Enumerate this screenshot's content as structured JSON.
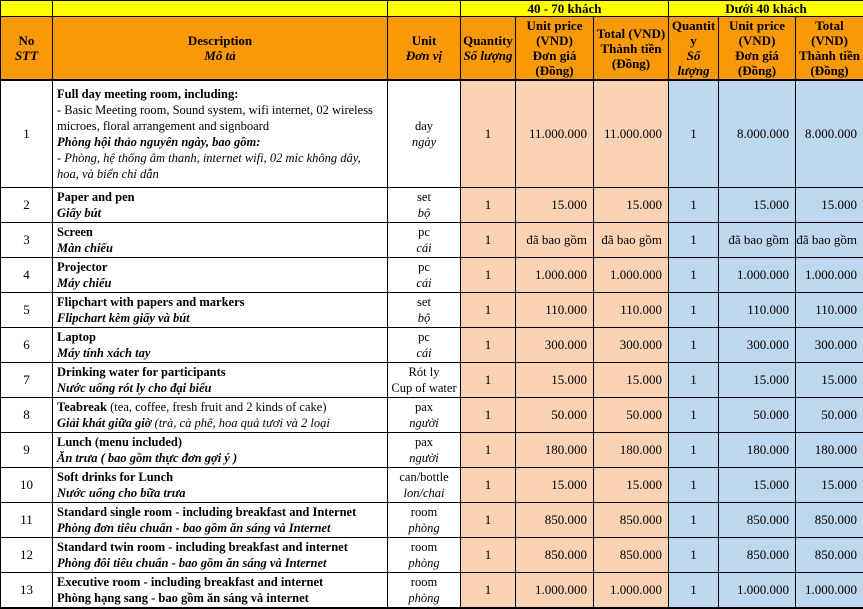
{
  "colors": {
    "header_yellow": "#FFFF00",
    "header_orange": "#FA9907",
    "group1_fill": "#FAD3B4",
    "group2_fill": "#BDD7EE",
    "grid_line": "#000000"
  },
  "header": {
    "no": {
      "en": "No",
      "vi": "STT"
    },
    "description": {
      "en": "Description",
      "vi": "Mô tả"
    },
    "unit": {
      "en": "Unit",
      "vi": "Đơn vị"
    },
    "groups": [
      {
        "title": "40 - 70 khách"
      },
      {
        "title": "Dưới 40 khách"
      }
    ],
    "qty": {
      "en": "Quantity",
      "vi": "Số lượng"
    },
    "unit_price": {
      "en": "Unit price (VND)",
      "vi": "Đơn giá (Đồng)"
    },
    "total": {
      "en": "Total (VND)",
      "vi": "Thành tiền (Đồng)"
    }
  },
  "rows": [
    {
      "no": "1",
      "desc": [
        [
          {
            "t": "Full day meeting room, including:",
            "s": "b"
          }
        ],
        [
          {
            "t": "- Basic Meeting room, Sound system, wifi internet, 02 wireless microes, floral arrangement and signboard",
            "s": "r"
          }
        ],
        [
          {
            "t": "Phòng hội thảo nguyên ngày, bao gồm:",
            "s": "bi"
          }
        ],
        [
          {
            "t": "- Phòng, hệ thống âm thanh, internet wifi, 02 mic không dây, hoa, và biển chỉ dẫn",
            "s": "i"
          }
        ]
      ],
      "unit": [
        {
          "t": "day",
          "s": "r"
        },
        {
          "t": "ngày",
          "s": "i"
        }
      ],
      "g1": {
        "qty": "1",
        "price": "11.000.000",
        "total": "11.000.000"
      },
      "g2": {
        "qty": "1",
        "price": "8.000.000",
        "total": "8.000.000"
      }
    },
    {
      "no": "2",
      "desc": [
        [
          {
            "t": "Paper and pen",
            "s": "b"
          }
        ],
        [
          {
            "t": "Giấy bút",
            "s": "bi"
          }
        ]
      ],
      "unit": [
        {
          "t": "set",
          "s": "r"
        },
        {
          "t": "bộ",
          "s": "i"
        }
      ],
      "g1": {
        "qty": "1",
        "price": "15.000",
        "total": "15.000"
      },
      "g2": {
        "qty": "1",
        "price": "15.000",
        "total": "15.000"
      }
    },
    {
      "no": "3",
      "desc": [
        [
          {
            "t": "Screen",
            "s": "b"
          }
        ],
        [
          {
            "t": "Màn chiếu",
            "s": "bi"
          }
        ]
      ],
      "unit": [
        {
          "t": "pc",
          "s": "r"
        },
        {
          "t": "cái",
          "s": "i"
        }
      ],
      "g1": {
        "qty": "1",
        "price": "đã bao gồm",
        "total": "đã bao gồm"
      },
      "g2": {
        "qty": "1",
        "price": "đã bao gồm",
        "total": "đã bao gồm"
      }
    },
    {
      "no": "4",
      "desc": [
        [
          {
            "t": "Projector",
            "s": "b"
          }
        ],
        [
          {
            "t": "Máy chiếu",
            "s": "bi"
          }
        ]
      ],
      "unit": [
        {
          "t": "pc",
          "s": "r"
        },
        {
          "t": "cái",
          "s": "i"
        }
      ],
      "g1": {
        "qty": "1",
        "price": "1.000.000",
        "total": "1.000.000"
      },
      "g2": {
        "qty": "1",
        "price": "1.000.000",
        "total": "1.000.000"
      }
    },
    {
      "no": "5",
      "desc": [
        [
          {
            "t": "Flipchart with papers and markers",
            "s": "b"
          }
        ],
        [
          {
            "t": "Flipchart kèm giấy và bút",
            "s": "bi"
          }
        ]
      ],
      "unit": [
        {
          "t": "set",
          "s": "r"
        },
        {
          "t": "bộ",
          "s": "i"
        }
      ],
      "g1": {
        "qty": "1",
        "price": "110.000",
        "total": "110.000"
      },
      "g2": {
        "qty": "1",
        "price": "110.000",
        "total": "110.000"
      }
    },
    {
      "no": "6",
      "desc": [
        [
          {
            "t": "Laptop",
            "s": "b"
          }
        ],
        [
          {
            "t": "Máy tính xách tay",
            "s": "bi"
          }
        ]
      ],
      "unit": [
        {
          "t": "pc",
          "s": "r"
        },
        {
          "t": "cái",
          "s": "i"
        }
      ],
      "g1": {
        "qty": "1",
        "price": "300.000",
        "total": "300.000"
      },
      "g2": {
        "qty": "1",
        "price": "300.000",
        "total": "300.000"
      }
    },
    {
      "no": "7",
      "desc": [
        [
          {
            "t": "Drinking water for participants",
            "s": "b"
          }
        ],
        [
          {
            "t": "Nước uống rót ly cho đại biểu",
            "s": "bi"
          }
        ]
      ],
      "unit": [
        {
          "t": "Rót ly",
          "s": "r"
        },
        {
          "t": "Cup of water",
          "s": "r"
        }
      ],
      "g1": {
        "qty": "1",
        "price": "15.000",
        "total": "15.000"
      },
      "g2": {
        "qty": "1",
        "price": "15.000",
        "total": "15.000"
      }
    },
    {
      "no": "8",
      "desc": [
        [
          {
            "t": "Teabreak",
            "s": "b"
          },
          {
            "t": " (tea, coffee, fresh fruit and 2 kinds of cake)",
            "s": "r"
          }
        ],
        [
          {
            "t": "Giải khát giữa giờ",
            "s": "bi"
          },
          {
            "t": " (trà, cà phê, hoa quả tươi và 2 loại",
            "s": "i"
          }
        ]
      ],
      "unit": [
        {
          "t": "pax",
          "s": "r"
        },
        {
          "t": "người",
          "s": "i"
        }
      ],
      "g1": {
        "qty": "1",
        "price": "50.000",
        "total": "50.000"
      },
      "g2": {
        "qty": "1",
        "price": "50.000",
        "total": "50.000"
      }
    },
    {
      "no": "9",
      "desc": [
        [
          {
            "t": "Lunch (menu included)",
            "s": "b"
          }
        ],
        [
          {
            "t": "Ăn trưa ( bao gồm thực đơn gợi ý )",
            "s": "bi"
          }
        ]
      ],
      "unit": [
        {
          "t": "pax",
          "s": "r"
        },
        {
          "t": "người",
          "s": "i"
        }
      ],
      "g1": {
        "qty": "1",
        "price": "180.000",
        "total": "180.000"
      },
      "g2": {
        "qty": "1",
        "price": "180.000",
        "total": "180.000"
      }
    },
    {
      "no": "10",
      "desc": [
        [
          {
            "t": "Soft drinks for Lunch",
            "s": "b"
          }
        ],
        [
          {
            "t": "Nước uống cho bữa trưa",
            "s": "bi"
          }
        ]
      ],
      "unit": [
        {
          "t": "can/bottle",
          "s": "r"
        },
        {
          "t": "lon/chai",
          "s": "i"
        }
      ],
      "g1": {
        "qty": "1",
        "price": "15.000",
        "total": "15.000"
      },
      "g2": {
        "qty": "1",
        "price": "15.000",
        "total": "15.000"
      }
    },
    {
      "no": "11",
      "desc": [
        [
          {
            "t": "Standard single room - including breakfast and Internet",
            "s": "b"
          }
        ],
        [
          {
            "t": "Phòng đơn tiêu chuẩn - bao gồm ăn sáng và Internet",
            "s": "bi"
          }
        ]
      ],
      "unit": [
        {
          "t": "room",
          "s": "r"
        },
        {
          "t": "phòng",
          "s": "i"
        }
      ],
      "g1": {
        "qty": "1",
        "price": "850.000",
        "total": "850.000"
      },
      "g2": {
        "qty": "1",
        "price": "850.000",
        "total": "850.000"
      }
    },
    {
      "no": "12",
      "desc": [
        [
          {
            "t": "Standard twin room - including breakfast and internet",
            "s": "b"
          }
        ],
        [
          {
            "t": "Phòng đôi tiêu chuẩn - bao gồm ăn sáng và Internet",
            "s": "bi"
          }
        ]
      ],
      "unit": [
        {
          "t": "room",
          "s": "r"
        },
        {
          "t": "phòng",
          "s": "i"
        }
      ],
      "g1": {
        "qty": "1",
        "price": "850.000",
        "total": "850.000"
      },
      "g2": {
        "qty": "1",
        "price": "850.000",
        "total": "850.000"
      }
    },
    {
      "no": "13",
      "desc": [
        [
          {
            "t": "Executive room - including breakfast and internet",
            "s": "b"
          }
        ],
        [
          {
            "t": "Phòng hạng sang - bao gồm ăn sáng và internet",
            "s": "b"
          }
        ]
      ],
      "unit": [
        {
          "t": "room",
          "s": "r"
        },
        {
          "t": "phòng",
          "s": "i"
        }
      ],
      "g1": {
        "qty": "1",
        "price": "1.000.000",
        "total": "1.000.000"
      },
      "g2": {
        "qty": "1",
        "price": "1.000.000",
        "total": "1.000.000"
      }
    }
  ]
}
